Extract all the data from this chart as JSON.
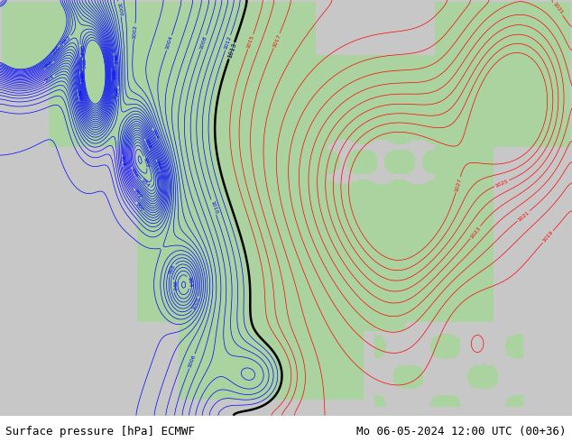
{
  "title_left": "Surface pressure [hPa] ECMWF",
  "title_right": "Mo 06-05-2024 12:00 UTC (00+36)",
  "background_color": "#ffffff",
  "land_color": [
    0.67,
    0.83,
    0.63
  ],
  "ocean_color": [
    0.78,
    0.78,
    0.78
  ],
  "contour_color_blue": "#0000ff",
  "contour_color_red": "#ff0000",
  "contour_color_black": "#000000",
  "title_fontsize": 9,
  "figsize": [
    6.34,
    4.9
  ],
  "dpi": 100
}
